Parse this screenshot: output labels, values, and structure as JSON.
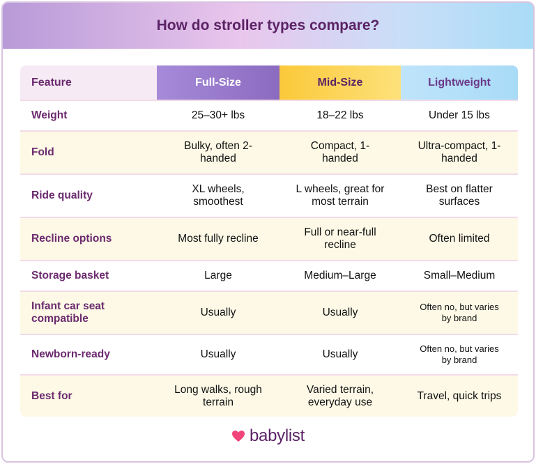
{
  "header": {
    "title": "How do stroller types compare?"
  },
  "table": {
    "columns": [
      "Feature",
      "Full-Size",
      "Mid-Size",
      "Lightweight"
    ],
    "rows": [
      [
        "Weight",
        "25–30+ lbs",
        "18–22 lbs",
        "Under 15 lbs"
      ],
      [
        "Fold",
        "Bulky, often 2-handed",
        "Compact, 1-handed",
        "Ultra-compact, 1-handed"
      ],
      [
        "Ride quality",
        "XL wheels, smoothest",
        "L wheels, great for most terrain",
        "Best on flatter surfaces"
      ],
      [
        "Recline options",
        "Most fully recline",
        "Full or near-full recline",
        "Often limited"
      ],
      [
        "Storage basket",
        "Large",
        "Medium–Large",
        "Small–Medium"
      ],
      [
        "Infant car seat compatible",
        "Usually",
        "Usually",
        "Often no, but varies by brand"
      ],
      [
        "Newborn-ready",
        "Usually",
        "Usually",
        "Often no, but varies by brand"
      ],
      [
        "Best for",
        "Long walks, rough terrain",
        "Varied terrain, everyday use",
        "Travel, quick trips"
      ]
    ]
  },
  "footer": {
    "brand": "babylist"
  }
}
